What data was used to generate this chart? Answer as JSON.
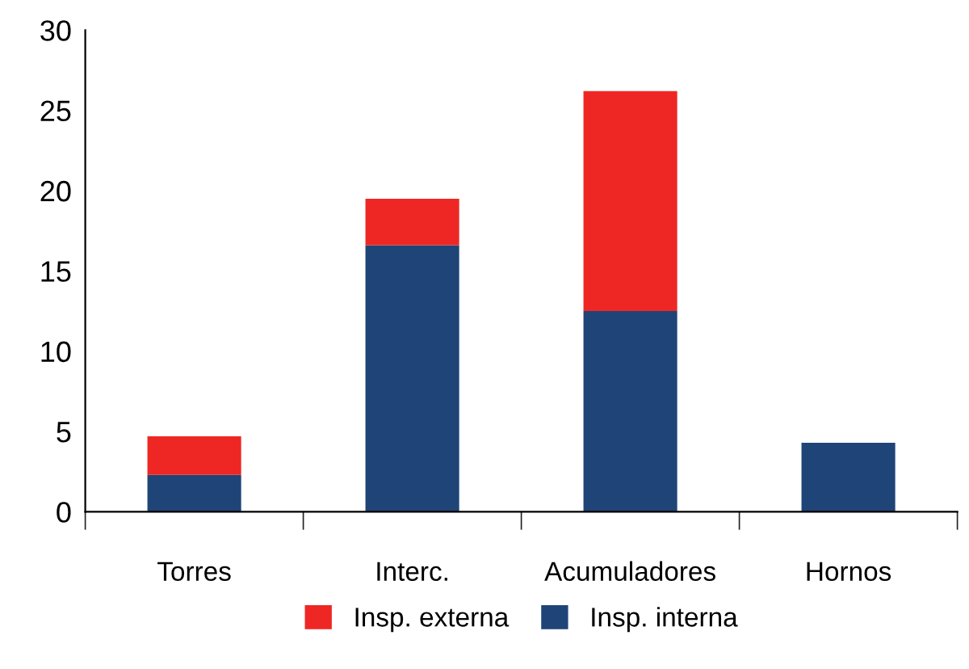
{
  "chart_data": {
    "type": "bar",
    "stacked": true,
    "categories": [
      "Torres",
      "Interc.",
      "Acumuladores",
      "Hornos"
    ],
    "series": [
      {
        "name": "Insp. interna",
        "color": "#1f4477",
        "values": [
          2.3,
          16.6,
          12.5,
          4.3
        ]
      },
      {
        "name": "Insp. externa",
        "color": "#ee2724",
        "values": [
          2.4,
          2.9,
          13.7,
          0
        ]
      }
    ],
    "ylim": [
      0,
      30
    ],
    "yticks": [
      0,
      5,
      10,
      15,
      20,
      25,
      30
    ],
    "grid": false,
    "legend": "bottom"
  }
}
